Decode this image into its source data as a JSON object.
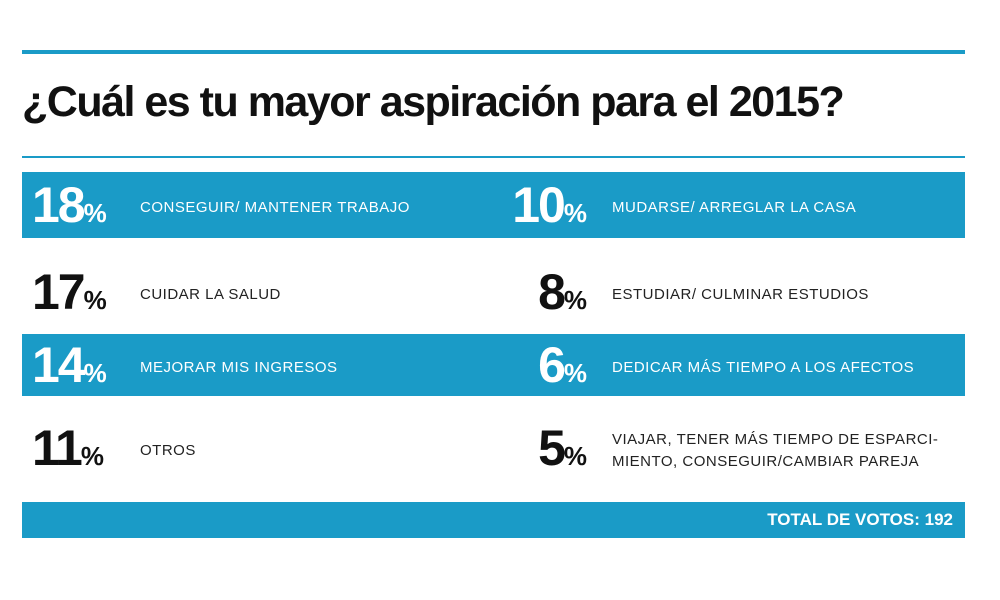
{
  "title": "¿Cuál es tu mayor aspiración para el 2015?",
  "rows": [
    {
      "left": {
        "number": "18",
        "unit": "%",
        "label": [
          "CONSEGUIR/ MANTENER TRABAJO"
        ]
      },
      "right": {
        "number": "10",
        "unit": "%",
        "label": [
          "MUDARSE/ ARREGLAR LA CASA"
        ]
      }
    },
    {
      "left": {
        "number": "17",
        "unit": "%",
        "label": [
          "CUIDAR LA SALUD"
        ]
      },
      "right": {
        "number": "8",
        "unit": "%",
        "label": [
          "ESTUDIAR/ CULMINAR ESTUDIOS"
        ]
      }
    },
    {
      "left": {
        "number": "14",
        "unit": "%",
        "label": [
          "MEJORAR MIS INGRESOS"
        ]
      },
      "right": {
        "number": "6",
        "unit": "%",
        "label": [
          "DEDICAR MÁS TIEMPO A LOS AFECTOS"
        ]
      }
    },
    {
      "left": {
        "number": "11",
        "unit": "%",
        "label": [
          "OTROS"
        ]
      },
      "right": {
        "number": "5",
        "unit": "%",
        "label": [
          "VIAJAR, TENER MÁS TIEMPO DE ESPARCI-",
          "MIENTO, CONSEGUIR/CAMBIAR PAREJA"
        ]
      }
    }
  ],
  "footer": "TOTAL DE VOTOS: 192"
}
